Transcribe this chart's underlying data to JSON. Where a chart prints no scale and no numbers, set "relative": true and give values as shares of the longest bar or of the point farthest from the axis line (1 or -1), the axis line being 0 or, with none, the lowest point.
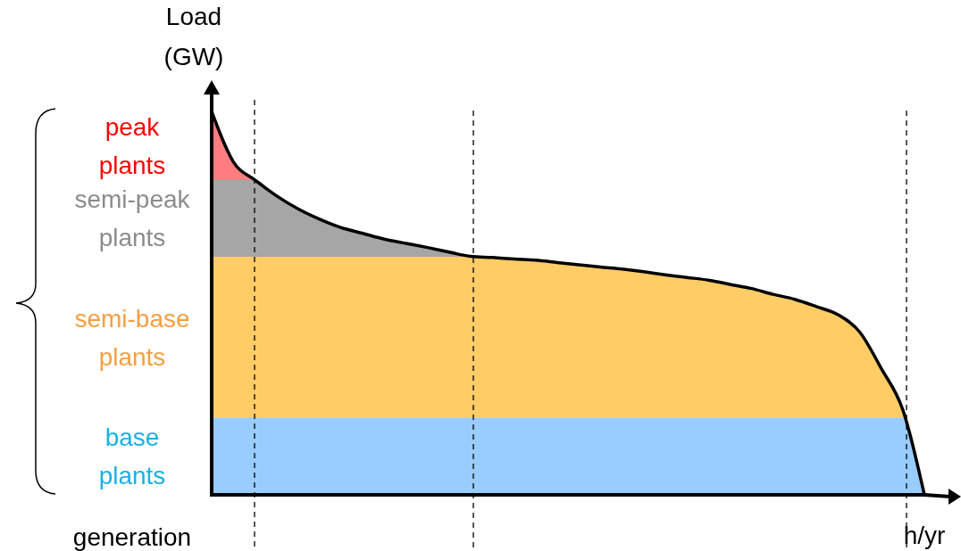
{
  "chart_data": {
    "type": "area",
    "stacked": true,
    "relative": true,
    "ylabel": "Load (GW)",
    "xlabel": "h/yr",
    "categories": [
      null,
      null,
      null,
      null,
      null,
      null,
      null,
      null,
      null,
      null,
      null,
      null,
      null,
      null,
      null,
      null,
      null,
      null,
      null,
      null,
      null,
      null,
      null,
      null,
      null,
      null,
      null,
      null,
      null,
      null,
      null,
      null,
      null,
      null
    ],
    "series": [
      {
        "name": "base plants",
        "color": "#99ccff",
        "values": [
          0.202,
          0.202,
          0.202,
          0.202,
          0.202,
          0.202,
          0.202,
          0.202,
          0.202,
          0.202,
          0.202,
          0.202,
          0.202,
          0.202,
          0.202,
          0.202,
          0.202,
          0.202,
          0.202,
          0.202,
          0.202,
          0.202,
          0.202,
          0.202,
          0.202,
          0.202,
          0.202,
          0.202,
          0.202,
          0.202,
          0.202,
          0.202,
          0.202,
          0
        ]
      },
      {
        "name": "semi-base plants",
        "color": "#ffcc66",
        "values": [
          0.419,
          0.419,
          0.419,
          0.419,
          0.419,
          0.419,
          0.419,
          0.419,
          0.419,
          0.419,
          0.419,
          0.419,
          0.419,
          0.417,
          0.413,
          0.41,
          0.404,
          0.398,
          0.392,
          0.387,
          0.38,
          0.372,
          0.365,
          0.358,
          0.347,
          0.336,
          0.321,
          0.308,
          0.289,
          0.268,
          0.223,
          0.128,
          0.02,
          0
        ]
      },
      {
        "name": "semi-peak plants",
        "color": "#a6a6a6",
        "values": [
          0.2,
          0.2,
          0.2,
          0.159,
          0.125,
          0.098,
          0.076,
          0.061,
          0.046,
          0.035,
          0.024,
          0.012,
          0.001,
          0,
          0,
          0,
          0,
          0,
          0,
          0,
          0,
          0,
          0,
          0,
          0,
          0,
          0,
          0,
          0,
          0,
          0,
          0,
          0,
          0
        ]
      },
      {
        "name": "peak plants",
        "color": "#ff7c80",
        "values": [
          0.179,
          0.048,
          0,
          0,
          0,
          0,
          0,
          0,
          0,
          0,
          0,
          0,
          0,
          0,
          0,
          0,
          0,
          0,
          0,
          0,
          0,
          0,
          0,
          0,
          0,
          0,
          0,
          0,
          0,
          0,
          0,
          0,
          0,
          0
        ]
      }
    ],
    "annotations": [
      "generation"
    ]
  }
}
